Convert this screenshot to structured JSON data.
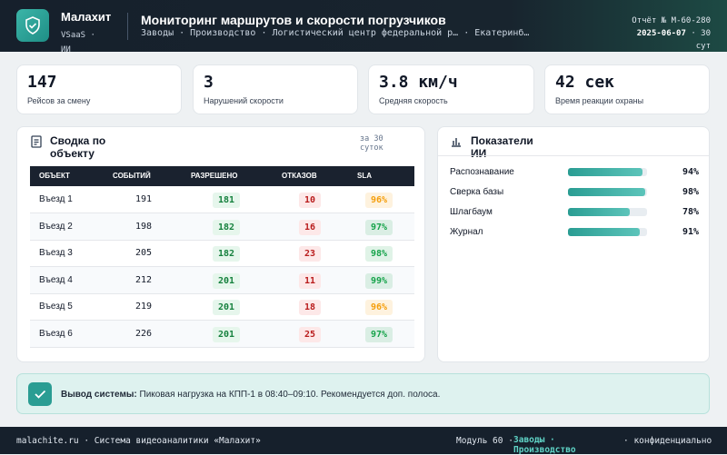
{
  "header": {
    "brand": "Малахит",
    "brand_sub": "VSaaS · ИИ",
    "title": "Мониторинг маршрутов и скорости погрузчиков",
    "breadcrumb": "Заводы · Производство · Логистический центр федеральной р… · Екатеринб…",
    "report_no": "Отчёт № М-60-280",
    "report_date": "2025-06-07",
    "report_period": "· 30 сут"
  },
  "kpis": [
    {
      "value": "147",
      "label": "Рейсов за смену"
    },
    {
      "value": "3",
      "label": "Нарушений скорости"
    },
    {
      "value": "3.8 км/ч",
      "label": "Средняя скорость"
    },
    {
      "value": "42 сек",
      "label": "Время реакции охраны"
    }
  ],
  "summary": {
    "title": "Сводка по объекту",
    "period": "за 30 суток",
    "columns": [
      "ОБЪЕКТ",
      "СОБЫТИЙ",
      "РАЗРЕШЕНО",
      "ОТКАЗОВ",
      "SLA"
    ],
    "rows": [
      [
        "Въезд 1",
        191,
        181,
        10,
        "96%"
      ],
      [
        "Въезд 2",
        198,
        182,
        16,
        "97%"
      ],
      [
        "Въезд 3",
        205,
        182,
        23,
        "98%"
      ],
      [
        "Въезд 4",
        212,
        201,
        11,
        "99%"
      ],
      [
        "Въезд 5",
        219,
        201,
        18,
        "96%"
      ],
      [
        "Въезд 6",
        226,
        201,
        25,
        "97%"
      ]
    ],
    "sla_colors": [
      "#f59e0b",
      "#16a34a",
      "#16a34a",
      "#16a34a",
      "#f59e0b",
      "#16a34a"
    ]
  },
  "ai": {
    "title": "Показатели ИИ",
    "metrics": [
      {
        "name": "Распознавание",
        "value": 94,
        "label": "94%"
      },
      {
        "name": "Сверка базы",
        "value": 98,
        "label": "98%"
      },
      {
        "name": "Шлагбаум",
        "value": 78,
        "label": "78%"
      },
      {
        "name": "Журнал",
        "value": 91,
        "label": "91%"
      }
    ]
  },
  "conclusion": {
    "label": "Вывод системы:",
    "text": "Пиковая нагрузка на КПП-1 в 08:40–09:10. Рекомендуется доп. полоса."
  },
  "footer": {
    "left": "malachite.ru · Система видеоаналитики «Малахит»",
    "module": "Модуль 60 ·",
    "section": "Заводы · Производство",
    "right": "· конфиденциально"
  }
}
